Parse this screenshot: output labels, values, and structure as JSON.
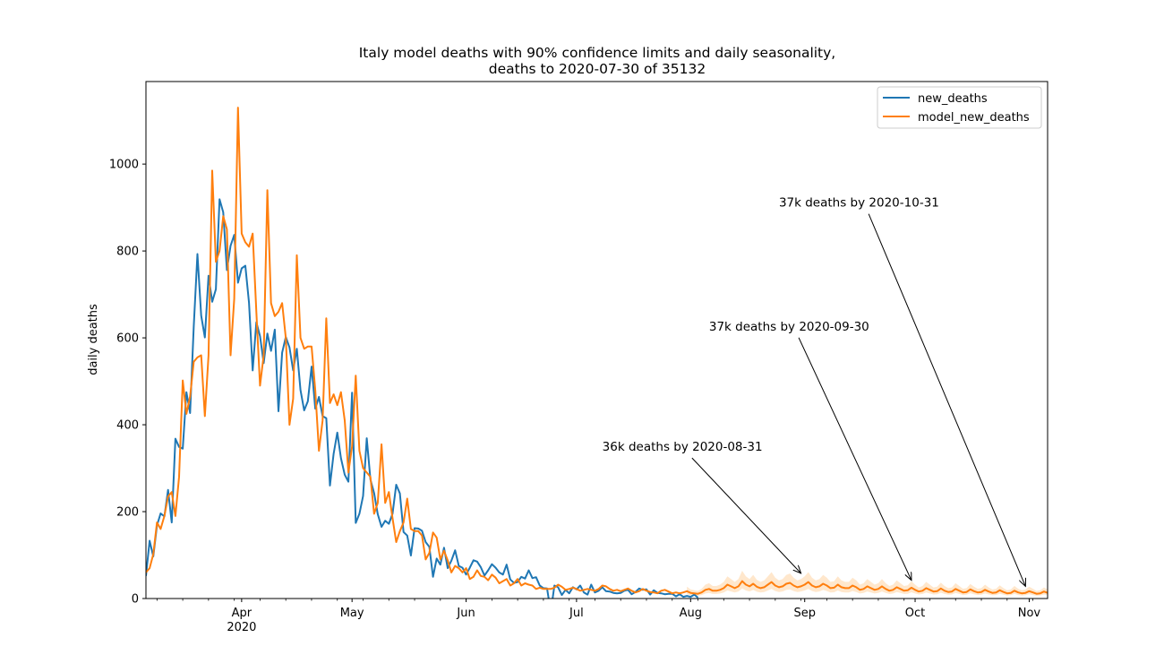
{
  "chart_data": {
    "type": "line",
    "title_line1": "Italy model deaths with 90% confidence limits and daily seasonality,",
    "title_line2": "deaths to 2020-07-30 of 35132",
    "xlabel": "",
    "ylabel": "daily deaths",
    "ylim": [
      0,
      1190
    ],
    "xlim": [
      "2020-03-06",
      "2020-11-06"
    ],
    "yticks": [
      0,
      200,
      400,
      600,
      800,
      1000
    ],
    "month_ticks": [
      {
        "label": "Apr",
        "date": "2020-04-01"
      },
      {
        "label": "May",
        "date": "2020-05-01"
      },
      {
        "label": "Jun",
        "date": "2020-06-01"
      },
      {
        "label": "Jul",
        "date": "2020-07-01"
      },
      {
        "label": "Aug",
        "date": "2020-08-01"
      },
      {
        "label": "Sep",
        "date": "2020-09-01"
      },
      {
        "label": "Oct",
        "date": "2020-10-01"
      },
      {
        "label": "Nov",
        "date": "2020-11-01"
      }
    ],
    "year_label": "2020",
    "grid": false,
    "legend_position": "top-right",
    "colors": {
      "new_deaths": "#1f77b4",
      "model_new_deaths": "#ff7f0e",
      "band": "#ffe1bf"
    },
    "series": [
      {
        "name": "new_deaths",
        "start": "2020-03-06",
        "values": [
          52,
          133,
          97,
          168,
          196,
          189,
          250,
          175,
          368,
          349,
          345,
          475,
          427,
          627,
          793,
          651,
          601,
          743,
          683,
          712,
          919,
          889,
          756,
          812,
          837,
          727,
          760,
          766,
          681,
          525,
          636,
          604,
          542,
          610,
          570,
          619,
          431,
          566,
          602,
          578,
          525,
          575,
          480,
          433,
          454,
          534,
          437,
          464,
          420,
          415,
          260,
          333,
          382,
          323,
          285,
          269,
          474,
          174,
          195,
          236,
          369,
          274,
          243,
          194,
          165,
          179,
          172,
          195,
          262,
          242,
          153,
          145,
          99,
          162,
          161,
          156,
          130,
          119,
          50,
          92,
          78,
          117,
          70,
          87,
          111,
          75,
          71,
          55,
          71,
          88,
          85,
          72,
          53,
          65,
          79,
          71,
          60,
          55,
          78,
          44,
          36,
          38,
          50,
          46,
          65,
          47,
          49,
          30,
          24,
          23,
          -31,
          30,
          26,
          8,
          20,
          12,
          26,
          21,
          30,
          14,
          9,
          32,
          14,
          18,
          26,
          17,
          16,
          13,
          12,
          13,
          18,
          20,
          10,
          15,
          23,
          20,
          21,
          9,
          19,
          13,
          12,
          10,
          11,
          11,
          5,
          10,
          4,
          6,
          4,
          9,
          2
        ]
      },
      {
        "name": "model_new_deaths",
        "start": "2020-03-06",
        "values": [
          60,
          70,
          102,
          175,
          160,
          190,
          235,
          245,
          190,
          280,
          502,
          425,
          465,
          545,
          555,
          560,
          420,
          560,
          985,
          775,
          800,
          880,
          850,
          560,
          690,
          1130,
          840,
          820,
          810,
          840,
          660,
          490,
          560,
          940,
          680,
          650,
          660,
          680,
          600,
          400,
          460,
          790,
          600,
          575,
          580,
          580,
          480,
          340,
          410,
          645,
          450,
          470,
          445,
          475,
          410,
          290,
          350,
          513,
          340,
          300,
          290,
          280,
          195,
          220,
          355,
          220,
          245,
          185,
          130,
          155,
          175,
          230,
          160,
          155,
          155,
          145,
          90,
          105,
          152,
          140,
          90,
          110,
          88,
          60,
          75,
          70,
          60,
          70,
          45,
          50,
          65,
          52,
          50,
          42,
          55,
          48,
          35,
          40,
          45,
          30,
          35,
          45,
          30,
          35,
          32,
          30,
          22,
          25,
          22,
          22,
          22,
          25,
          32,
          27,
          20,
          22,
          25,
          22,
          18,
          20,
          22,
          20,
          18,
          22,
          30,
          28,
          22,
          18,
          20,
          17,
          20,
          23,
          18,
          14,
          17,
          22,
          18,
          15,
          14,
          12,
          18,
          20,
          16,
          12,
          14,
          12,
          14,
          17,
          13,
          12,
          11,
          14,
          20,
          22,
          18,
          18,
          20,
          24,
          32,
          28,
          24,
          28,
          40,
          32,
          28,
          34,
          27,
          24,
          26,
          32,
          38,
          30,
          26,
          28,
          34,
          36,
          30,
          26,
          28,
          32,
          38,
          30,
          26,
          28,
          34,
          30,
          24,
          25,
          32,
          26,
          24,
          24,
          30,
          26,
          20,
          22,
          28,
          24,
          20,
          22,
          28,
          22,
          18,
          20,
          26,
          22,
          18,
          19,
          25,
          20,
          16,
          18,
          24,
          20,
          16,
          17,
          23,
          18,
          15,
          16,
          22,
          18,
          14,
          15,
          21,
          17,
          14,
          15,
          20,
          16,
          13,
          14,
          19,
          15,
          12,
          13,
          18,
          14,
          12,
          13,
          17,
          14,
          11,
          12,
          16,
          13,
          11,
          12,
          14,
          12,
          10,
          11,
          14
        ]
      }
    ],
    "band": {
      "start": "2020-07-31",
      "end": "2020-11-06",
      "relative_width": 0.6
    },
    "annotations": [
      {
        "text": "36k deaths by 2020-08-31",
        "text_date": "2020-07-08",
        "text_y": 340,
        "tip_date": "2020-08-31",
        "tip_y": 58
      },
      {
        "text": "37k deaths by 2020-09-30",
        "text_date": "2020-08-06",
        "text_y": 617,
        "tip_date": "2020-09-30",
        "tip_y": 42
      },
      {
        "text": "37k deaths by 2020-10-31",
        "text_date": "2020-08-25",
        "text_y": 902,
        "tip_date": "2020-10-31",
        "tip_y": 28
      }
    ]
  }
}
